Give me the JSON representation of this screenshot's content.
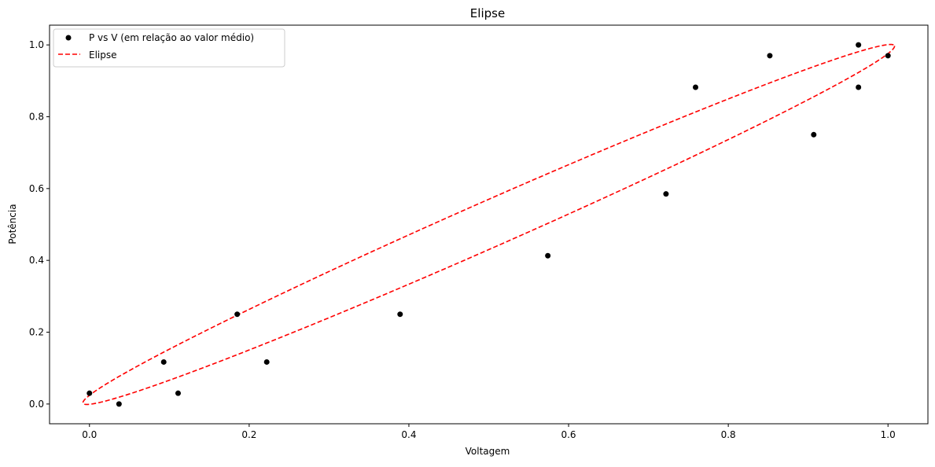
{
  "chart_data": {
    "type": "scatter",
    "title": "Elipse",
    "xlabel": "Voltagem",
    "ylabel": "Potência",
    "xlim": [
      -0.05,
      1.05
    ],
    "ylim": [
      -0.055,
      1.055
    ],
    "xticks": [
      0.0,
      0.2,
      0.4,
      0.6,
      0.8,
      1.0
    ],
    "yticks": [
      0.0,
      0.2,
      0.4,
      0.6,
      0.8,
      1.0
    ],
    "xtick_labels": [
      "0.0",
      "0.2",
      "0.4",
      "0.6",
      "0.8",
      "1.0"
    ],
    "ytick_labels": [
      "0.0",
      "0.2",
      "0.4",
      "0.6",
      "0.8",
      "1.0"
    ],
    "grid": false,
    "legend_position": "top-left",
    "series": [
      {
        "name": "P vs V (em relação ao valor médio)",
        "kind": "scatter",
        "color": "#000000",
        "points": [
          [
            0.0,
            0.03
          ],
          [
            0.037,
            0.0
          ],
          [
            0.093,
            0.117
          ],
          [
            0.111,
            0.03
          ],
          [
            0.185,
            0.25
          ],
          [
            0.222,
            0.117
          ],
          [
            0.389,
            0.25
          ],
          [
            0.574,
            0.413
          ],
          [
            0.722,
            0.585
          ],
          [
            0.759,
            0.882
          ],
          [
            0.852,
            0.97
          ],
          [
            0.907,
            0.75
          ],
          [
            0.963,
            1.0
          ],
          [
            0.963,
            0.882
          ],
          [
            1.0,
            0.97
          ]
        ]
      },
      {
        "name": "Elipse",
        "kind": "dashed-line",
        "color": "#ff0000",
        "ellipse": {
          "center": [
            0.5,
            0.5
          ],
          "semi_major": 0.712,
          "semi_minor": 0.05,
          "angle_deg": 44.6
        }
      }
    ]
  }
}
